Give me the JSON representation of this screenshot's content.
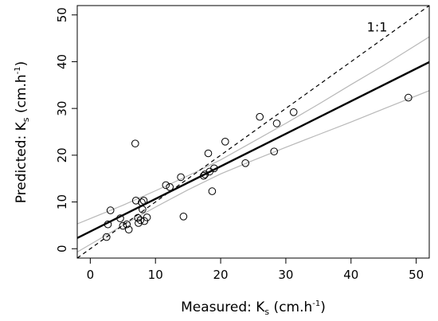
{
  "chart_data": {
    "type": "scatter",
    "title": "",
    "xlabel": {
      "main": "Measured: K",
      "sub": "s",
      "mid": " (cm.h",
      "sup": "-1",
      "end": ")"
    },
    "ylabel": {
      "main": "Predicted: K",
      "sub": "s",
      "mid": " (cm.h",
      "sup": "-1",
      "end": ")"
    },
    "xlim": [
      -2,
      52
    ],
    "ylim": [
      -2,
      52
    ],
    "xticks": [
      0,
      10,
      20,
      30,
      40,
      50
    ],
    "yticks": [
      0,
      10,
      20,
      30,
      40,
      50
    ],
    "grid": false,
    "annotation": {
      "text": "1:1",
      "x": 44,
      "y": 46.5
    },
    "points": [
      {
        "x": 2.5,
        "y": 2.5
      },
      {
        "x": 2.7,
        "y": 5.2
      },
      {
        "x": 3.1,
        "y": 8.2
      },
      {
        "x": 4.6,
        "y": 6.5
      },
      {
        "x": 5.0,
        "y": 4.9
      },
      {
        "x": 5.6,
        "y": 5.2
      },
      {
        "x": 5.9,
        "y": 4.1
      },
      {
        "x": 6.9,
        "y": 22.5
      },
      {
        "x": 7.0,
        "y": 10.3
      },
      {
        "x": 7.3,
        "y": 6.6
      },
      {
        "x": 7.4,
        "y": 5.5
      },
      {
        "x": 7.7,
        "y": 6.1
      },
      {
        "x": 7.9,
        "y": 9.9
      },
      {
        "x": 8.0,
        "y": 8.4
      },
      {
        "x": 8.2,
        "y": 10.3
      },
      {
        "x": 8.3,
        "y": 5.9
      },
      {
        "x": 8.7,
        "y": 6.7
      },
      {
        "x": 11.6,
        "y": 13.6
      },
      {
        "x": 12.2,
        "y": 13.2
      },
      {
        "x": 13.9,
        "y": 15.3
      },
      {
        "x": 14.3,
        "y": 6.9
      },
      {
        "x": 17.4,
        "y": 15.6
      },
      {
        "x": 17.6,
        "y": 15.9
      },
      {
        "x": 18.1,
        "y": 20.4
      },
      {
        "x": 18.3,
        "y": 16.5
      },
      {
        "x": 18.7,
        "y": 12.3
      },
      {
        "x": 19.0,
        "y": 17.2
      },
      {
        "x": 20.7,
        "y": 22.9
      },
      {
        "x": 23.8,
        "y": 18.3
      },
      {
        "x": 26.0,
        "y": 28.2
      },
      {
        "x": 28.2,
        "y": 20.8
      },
      {
        "x": 28.6,
        "y": 26.8
      },
      {
        "x": 31.2,
        "y": 29.2
      },
      {
        "x": 48.8,
        "y": 32.3
      }
    ],
    "series": [
      {
        "kind": "identity-line",
        "style": "dashed",
        "color": "#000000",
        "x": [
          -2,
          52
        ],
        "y": [
          -2,
          52
        ]
      },
      {
        "kind": "fit-line",
        "style": "solid-bold",
        "color": "#000000",
        "x": [
          -2,
          52
        ],
        "y": [
          2.3,
          39.9
        ]
      },
      {
        "kind": "upper-confidence",
        "style": "solid",
        "color": "#b8b8b8",
        "x": [
          -2,
          5,
          10,
          15,
          20,
          25,
          30,
          35,
          40,
          45,
          52
        ],
        "y": [
          5.3,
          9.3,
          12.4,
          15.6,
          19.0,
          22.9,
          26.8,
          30.9,
          35.1,
          39.2,
          45.3
        ]
      },
      {
        "kind": "lower-confidence",
        "style": "solid",
        "color": "#b8b8b8",
        "x": [
          -2,
          5,
          10,
          15,
          20,
          25,
          30,
          35,
          40,
          45,
          52
        ],
        "y": [
          -0.7,
          5.0,
          8.9,
          12.6,
          16.0,
          18.9,
          21.7,
          24.4,
          27.1,
          29.9,
          33.8
        ]
      }
    ]
  }
}
